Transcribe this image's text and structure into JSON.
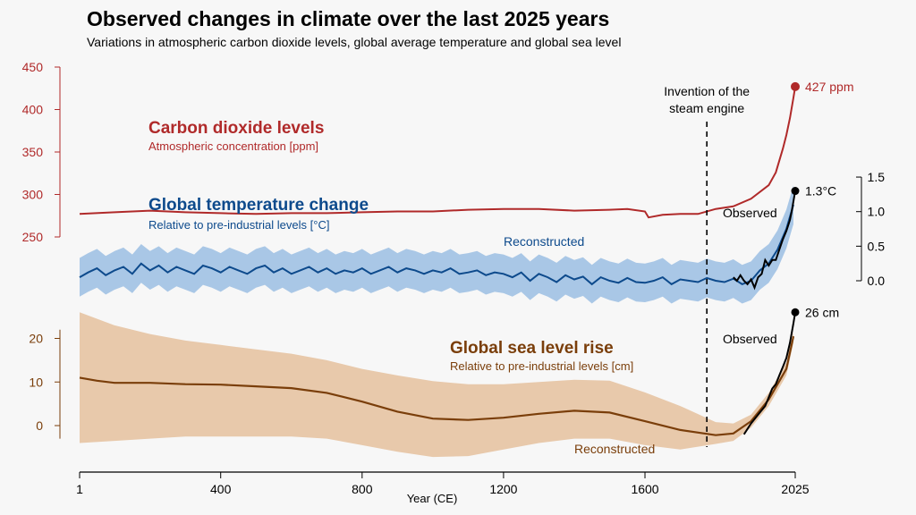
{
  "title": "Observed changes in climate over the last 2025 years",
  "subtitle": "Variations in atmospheric carbon dioxide levels, global average temperature and global sea level",
  "colors": {
    "co2": "#b02a2a",
    "temp": "#0d4a8c",
    "temp_band": "#a9c7e6",
    "sea": "#7a3e0a",
    "sea_band": "#e8c9ab",
    "observed": "#000000",
    "background": "#f7f7f7"
  },
  "labels": {
    "co2_title": "Carbon dioxide levels",
    "co2_sub": "Atmospheric concentration [ppm]",
    "temp_title": "Global temperature change",
    "temp_sub": "Relative to pre-industrial levels [°C]",
    "sea_title": "Global sea level rise",
    "sea_sub": "Relative to pre-industrial levels [cm]",
    "temp_reconstructed": "Reconstructed",
    "sea_reconstructed": "Reconstructed",
    "temp_observed": "Observed",
    "sea_observed": "Observed",
    "steam_line1": "Invention of the",
    "steam_line2": "steam engine",
    "co2_end": "427 ppm",
    "temp_end": "1.3°C",
    "sea_end": "26 cm"
  },
  "chart_data": {
    "type": "line",
    "title": "Observed changes in climate over the last 2025 years",
    "subtitle": "Variations in atmospheric carbon dioxide levels, global average temperature and global sea level",
    "xlabel": "Year (CE)",
    "xlim": [
      1,
      2025
    ],
    "xticks": [
      1,
      400,
      800,
      1200,
      1600,
      2025
    ],
    "steam_engine_year": 1775,
    "co2": {
      "ylim": [
        250,
        450
      ],
      "yticks": [
        250,
        300,
        350,
        400,
        450
      ],
      "x": [
        1,
        100,
        200,
        300,
        400,
        500,
        600,
        700,
        800,
        900,
        1000,
        1100,
        1200,
        1300,
        1400,
        1500,
        1550,
        1600,
        1610,
        1650,
        1700,
        1750,
        1800,
        1850,
        1900,
        1950,
        1970,
        1990,
        2000,
        2010,
        2020,
        2025
      ],
      "values": [
        277,
        279,
        281,
        279,
        278,
        277,
        278,
        278,
        279,
        280,
        280,
        282,
        283,
        283,
        281,
        282,
        283,
        280,
        273,
        276,
        277,
        277,
        283,
        286,
        295,
        311,
        326,
        354,
        370,
        390,
        414,
        427
      ]
    },
    "temperature": {
      "ylim": [
        0.0,
        1.5
      ],
      "yticks": [
        0.0,
        0.5,
        1.0,
        1.5
      ],
      "reconstructed": {
        "x": [
          1,
          25,
          50,
          75,
          100,
          125,
          150,
          175,
          200,
          225,
          250,
          275,
          300,
          325,
          350,
          375,
          400,
          425,
          450,
          475,
          500,
          525,
          550,
          575,
          600,
          625,
          650,
          675,
          700,
          725,
          750,
          775,
          800,
          825,
          850,
          875,
          900,
          925,
          950,
          975,
          1000,
          1025,
          1050,
          1075,
          1100,
          1125,
          1150,
          1175,
          1200,
          1225,
          1250,
          1275,
          1300,
          1325,
          1350,
          1375,
          1400,
          1425,
          1450,
          1475,
          1500,
          1525,
          1550,
          1575,
          1600,
          1625,
          1650,
          1675,
          1700,
          1725,
          1750,
          1775,
          1800,
          1825,
          1850,
          1875,
          1900,
          1925,
          1950,
          1975,
          2000,
          2020
        ],
        "values": [
          0.05,
          0.12,
          0.18,
          0.08,
          0.15,
          0.2,
          0.1,
          0.25,
          0.15,
          0.22,
          0.12,
          0.2,
          0.15,
          0.1,
          0.22,
          0.18,
          0.12,
          0.2,
          0.15,
          0.1,
          0.18,
          0.22,
          0.12,
          0.18,
          0.1,
          0.15,
          0.2,
          0.12,
          0.18,
          0.1,
          0.15,
          0.12,
          0.18,
          0.1,
          0.15,
          0.2,
          0.12,
          0.18,
          0.15,
          0.1,
          0.15,
          0.12,
          0.18,
          0.1,
          0.12,
          0.15,
          0.08,
          0.12,
          0.1,
          0.05,
          0.12,
          0.0,
          0.1,
          0.05,
          -0.02,
          0.08,
          0.02,
          0.06,
          -0.05,
          0.05,
          0.0,
          -0.03,
          0.04,
          -0.02,
          -0.03,
          0.0,
          0.05,
          -0.05,
          0.02,
          0.0,
          -0.02,
          0.04,
          0.0,
          -0.02,
          0.03,
          -0.05,
          0.0,
          0.15,
          0.25,
          0.45,
          0.75,
          1.1
        ],
        "band_halfwidth": 0.28
      },
      "observed": {
        "x": [
          1850,
          1860,
          1870,
          1880,
          1890,
          1900,
          1910,
          1920,
          1930,
          1940,
          1950,
          1960,
          1970,
          1980,
          1990,
          2000,
          2010,
          2015,
          2020,
          2025
        ],
        "values": [
          0.05,
          0.0,
          0.08,
          0.0,
          -0.05,
          0.02,
          -0.1,
          0.05,
          0.1,
          0.3,
          0.22,
          0.3,
          0.3,
          0.45,
          0.6,
          0.72,
          0.88,
          1.0,
          1.15,
          1.3
        ]
      }
    },
    "sea_level": {
      "ylim": [
        -5,
        25
      ],
      "yticks": [
        0,
        10,
        20
      ],
      "reconstructed": {
        "x": [
          1,
          50,
          100,
          200,
          300,
          400,
          500,
          600,
          700,
          800,
          900,
          1000,
          1100,
          1200,
          1300,
          1400,
          1500,
          1600,
          1700,
          1800,
          1850,
          1900,
          1950,
          2000,
          2020
        ],
        "values": [
          11,
          10.3,
          9.8,
          9.8,
          9.5,
          9.4,
          9.0,
          8.6,
          7.5,
          5.5,
          3.2,
          1.6,
          1.3,
          1.8,
          2.7,
          3.4,
          3.0,
          1.0,
          -1.0,
          -2.2,
          -1.8,
          1.0,
          6.0,
          13.0,
          20.5
        ]
      },
      "upper": {
        "x": [
          1,
          100,
          200,
          300,
          400,
          500,
          600,
          700,
          800,
          900,
          1000,
          1100,
          1200,
          1300,
          1400,
          1500,
          1600,
          1700,
          1800,
          1850,
          1900,
          1950,
          2000,
          2020
        ],
        "values": [
          26,
          23,
          21,
          19.5,
          18.5,
          17.5,
          16.5,
          15,
          13,
          11.5,
          10.2,
          9.5,
          9.5,
          10,
          10.5,
          10.3,
          7.6,
          4.5,
          0.8,
          0.5,
          2.5,
          7.5,
          14.5,
          21.5
        ]
      },
      "lower": {
        "x": [
          1,
          100,
          200,
          300,
          400,
          500,
          600,
          700,
          800,
          900,
          1000,
          1100,
          1200,
          1300,
          1400,
          1500,
          1600,
          1700,
          1800,
          1850,
          1900,
          1950,
          2000,
          2020
        ],
        "values": [
          -4,
          -3.5,
          -3,
          -2.5,
          -2.5,
          -2.5,
          -2.5,
          -3,
          -4.5,
          -6,
          -7.2,
          -7,
          -5.5,
          -4,
          -3,
          -3,
          -4.5,
          -5.5,
          -4.2,
          -3.5,
          -0.5,
          4.5,
          11.5,
          19
        ]
      },
      "observed": {
        "x": [
          1880,
          1900,
          1920,
          1940,
          1950,
          1960,
          1970,
          1980,
          1990,
          2000,
          2010,
          2020,
          2025
        ],
        "values": [
          -2,
          0.5,
          2.5,
          4.5,
          6.5,
          8.5,
          9.5,
          11.5,
          13.5,
          15.5,
          19.0,
          23.5,
          26
        ]
      }
    }
  }
}
